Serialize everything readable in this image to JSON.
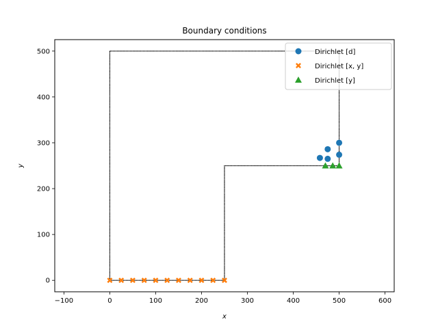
{
  "chart_data": {
    "type": "scatter",
    "title": "Boundary conditions",
    "xlabel": "x",
    "ylabel": "y",
    "xlim": [
      -120,
      620
    ],
    "ylim": [
      -25,
      525
    ],
    "xticks": [
      -100,
      0,
      100,
      200,
      300,
      400,
      500,
      600
    ],
    "yticks": [
      0,
      100,
      200,
      300,
      400,
      500
    ],
    "grid": false,
    "legend_position": "top-right",
    "geometry_outline": {
      "x": [
        0,
        500,
        500,
        250,
        250,
        0,
        0
      ],
      "y": [
        500,
        500,
        250,
        250,
        0,
        0,
        500
      ]
    },
    "series": [
      {
        "name": "Dirichlet  [d]",
        "marker": "circle",
        "color": "#1f77b4",
        "x": [
          458,
          475,
          475,
          500,
          500
        ],
        "y": [
          267,
          286,
          265,
          300,
          274
        ]
      },
      {
        "name": "Dirichlet  [x, y]",
        "marker": "x",
        "color": "#ff7f0e",
        "x": [
          0,
          25,
          50,
          75,
          100,
          125,
          150,
          175,
          200,
          225,
          250
        ],
        "y": [
          0,
          0,
          0,
          0,
          0,
          0,
          0,
          0,
          0,
          0,
          0
        ]
      },
      {
        "name": "Dirichlet  [y]",
        "marker": "triangle",
        "color": "#2ca02c",
        "x": [
          470,
          486,
          500
        ],
        "y": [
          250,
          250,
          250
        ]
      }
    ]
  }
}
